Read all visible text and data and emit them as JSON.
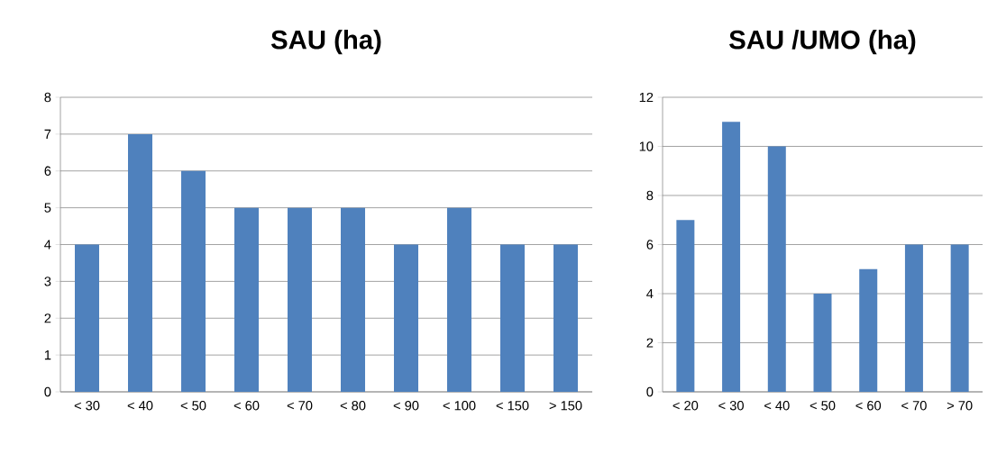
{
  "chart_data": [
    {
      "type": "bar",
      "title": "SAU (ha)",
      "categories": [
        "< 30",
        "< 40",
        "< 50",
        "< 60",
        "< 70",
        "< 80",
        "< 90",
        "< 100",
        "< 150",
        "> 150"
      ],
      "values": [
        4,
        7,
        6,
        5,
        5,
        5,
        4,
        5,
        4,
        4
      ],
      "color": "#4f81bd",
      "ylim": [
        0,
        8
      ],
      "yticks": [
        0,
        1,
        2,
        3,
        4,
        5,
        6,
        7,
        8
      ],
      "grid": "y"
    },
    {
      "type": "bar",
      "title": "SAU /UMO (ha)",
      "categories": [
        "< 20",
        "< 30",
        "< 40",
        "< 50",
        "< 60",
        "< 70",
        "> 70"
      ],
      "values": [
        7,
        11,
        10,
        4,
        5,
        6,
        6
      ],
      "color": "#4f81bd",
      "ylim": [
        0,
        12
      ],
      "yticks": [
        0,
        2,
        4,
        6,
        8,
        10,
        12
      ],
      "grid": "y"
    }
  ]
}
